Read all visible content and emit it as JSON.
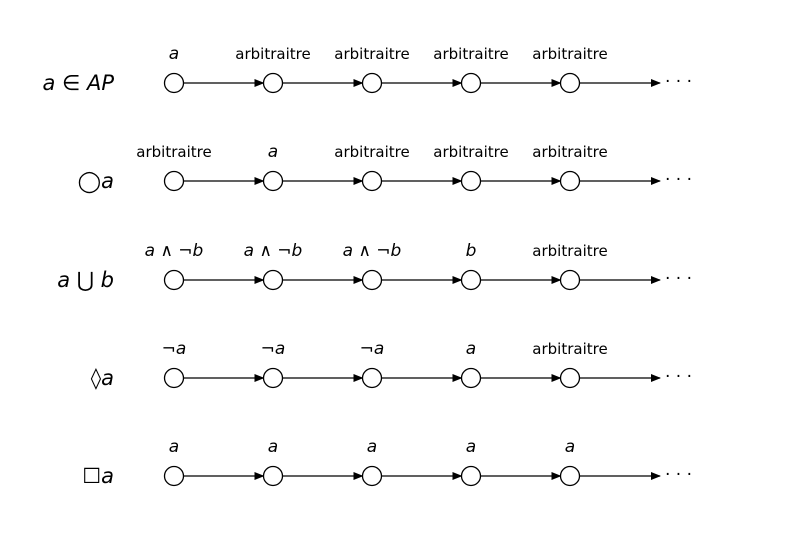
{
  "continuation": "· · ·",
  "rows": [
    {
      "formula": "a ∈ AP",
      "labels": [
        "a",
        "arbitraitre",
        "arbitraitre",
        "arbitraitre",
        "arbitraitre"
      ],
      "italic": [
        true,
        false,
        false,
        false,
        false
      ]
    },
    {
      "formula": "◯a",
      "labels": [
        "arbitraitre",
        "a",
        "arbitraitre",
        "arbitraitre",
        "arbitraitre"
      ],
      "italic": [
        false,
        true,
        false,
        false,
        false
      ]
    },
    {
      "formula": "a ⋃ b",
      "labels": [
        "a ∧ ¬b",
        "a ∧ ¬b",
        "a ∧ ¬b",
        "b",
        "arbitraitre"
      ],
      "italic": [
        true,
        true,
        true,
        true,
        false
      ]
    },
    {
      "formula": "◊a",
      "labels": [
        "¬a",
        "¬a",
        "¬a",
        "a",
        "arbitraitre"
      ],
      "italic": [
        true,
        true,
        true,
        true,
        false
      ]
    },
    {
      "formula": "☐a",
      "labels": [
        "a",
        "a",
        "a",
        "a",
        "a"
      ],
      "italic": [
        true,
        true,
        true,
        true,
        true
      ]
    }
  ]
}
